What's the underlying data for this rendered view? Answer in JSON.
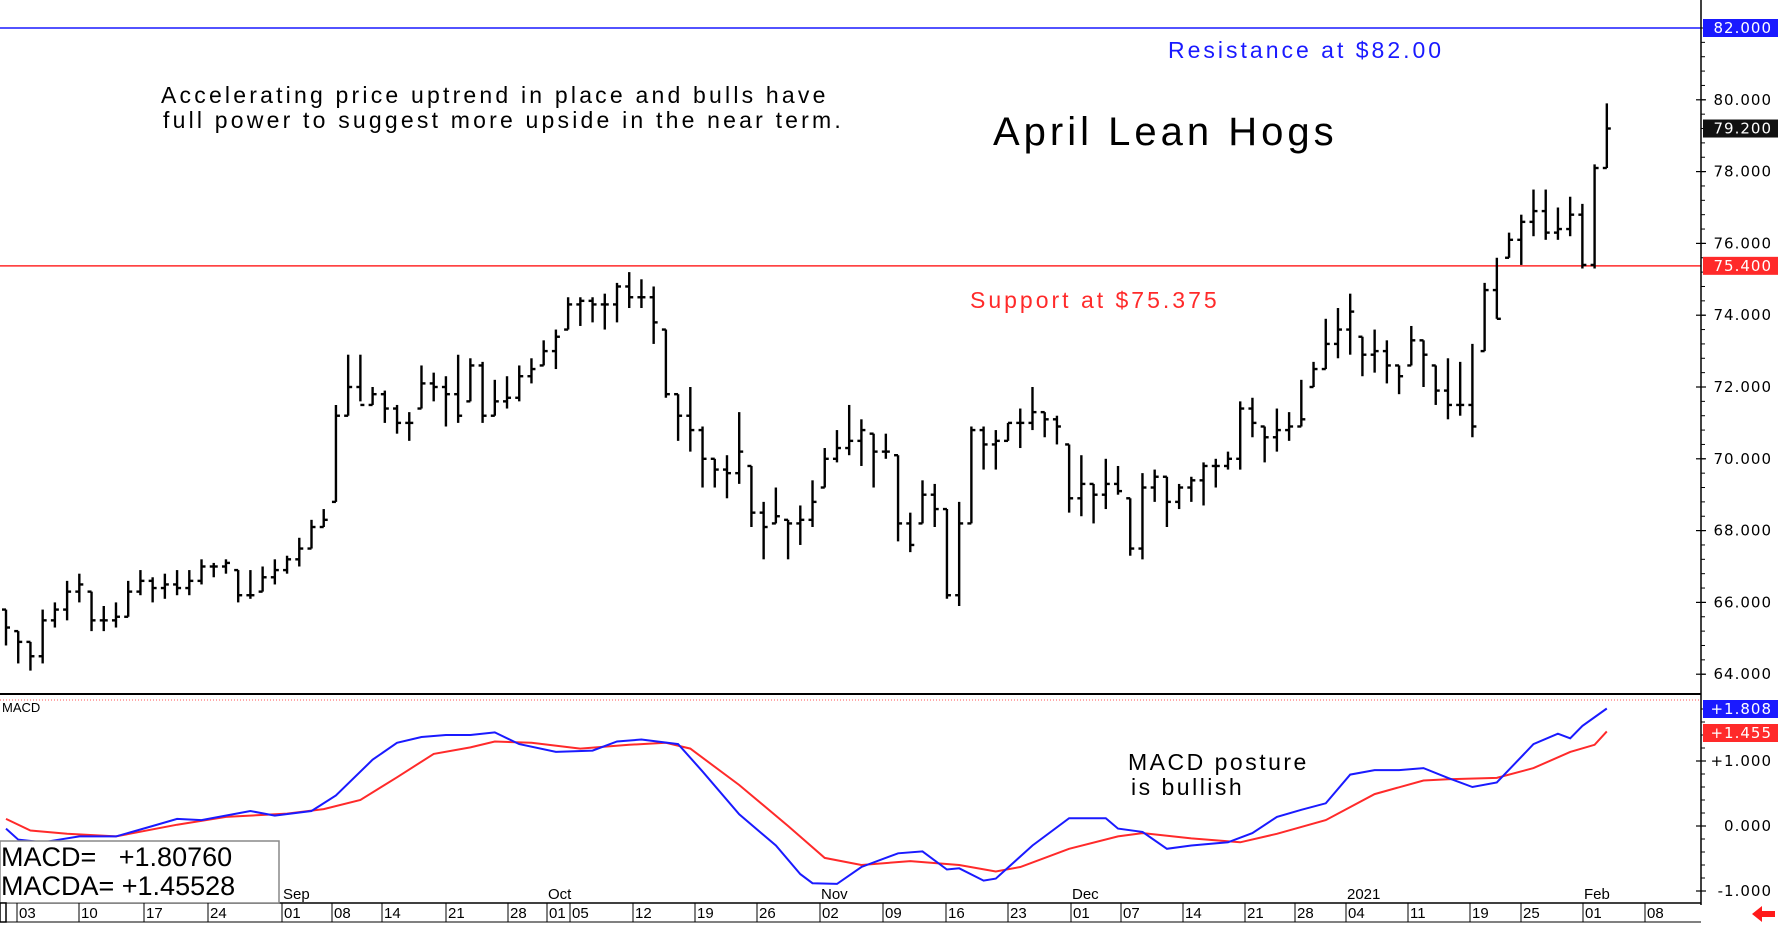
{
  "chart_data": [
    {
      "type": "ohlc-bar",
      "title": "April Lean Hogs",
      "annotations": {
        "commentary_line1": "Accelerating price uptrend in place and bulls have",
        "commentary_line2": "full power to suggest more upside in the near term.",
        "resistance": "Resistance at $82.00",
        "support": "Support at $75.375"
      },
      "ylim": [
        63.5,
        82.5
      ],
      "y_ticks": [
        "80.000",
        "78.000",
        "76.000",
        "74.000",
        "72.000",
        "70.000",
        "68.000",
        "66.000",
        "64.000"
      ],
      "y_tick_values": [
        80,
        78,
        76,
        74,
        72,
        70,
        68,
        66,
        64
      ],
      "levels": [
        {
          "label": "82.000",
          "value": 82.0,
          "color": "#1a1aff"
        },
        {
          "label": "75.400",
          "value": 75.375,
          "color": "#ff2a2a"
        }
      ],
      "last_price": {
        "label": "79.200",
        "value": 79.2,
        "color": "#111111"
      },
      "bars_hlc": [
        [
          65.8,
          64.8,
          65.3
        ],
        [
          65.2,
          64.3,
          64.9
        ],
        [
          64.9,
          64.1,
          64.5
        ],
        [
          65.8,
          64.3,
          65.5
        ],
        [
          66.0,
          65.3,
          65.8
        ],
        [
          66.6,
          65.5,
          66.3
        ],
        [
          66.8,
          66.0,
          66.5
        ],
        [
          66.3,
          65.2,
          65.5
        ],
        [
          65.9,
          65.2,
          65.5
        ],
        [
          66.0,
          65.3,
          65.6
        ],
        [
          66.6,
          65.6,
          66.3
        ],
        [
          66.9,
          66.2,
          66.6
        ],
        [
          66.7,
          66.0,
          66.4
        ],
        [
          66.8,
          66.1,
          66.5
        ],
        [
          66.9,
          66.2,
          66.4
        ],
        [
          66.9,
          66.2,
          66.6
        ],
        [
          67.2,
          66.5,
          67.0
        ],
        [
          67.1,
          66.7,
          67.0
        ],
        [
          67.2,
          66.8,
          67.1
        ],
        [
          66.9,
          66.0,
          66.2
        ],
        [
          66.9,
          66.1,
          66.2
        ],
        [
          67.0,
          66.3,
          66.7
        ],
        [
          67.2,
          66.5,
          66.9
        ],
        [
          67.3,
          66.8,
          67.2
        ],
        [
          67.8,
          67.0,
          67.5
        ],
        [
          68.3,
          67.5,
          68.1
        ],
        [
          68.6,
          68.1,
          68.3
        ],
        [
          71.5,
          68.8,
          71.2
        ],
        [
          72.9,
          71.2,
          72.0
        ],
        [
          72.9,
          71.6,
          71.5
        ],
        [
          72.0,
          71.5,
          71.8
        ],
        [
          71.9,
          71.0,
          71.4
        ],
        [
          71.5,
          70.7,
          71.0
        ],
        [
          71.3,
          70.5,
          71.0
        ],
        [
          72.6,
          71.4,
          72.1
        ],
        [
          72.4,
          71.6,
          72.0
        ],
        [
          72.3,
          70.9,
          71.8
        ],
        [
          72.9,
          71.0,
          71.2
        ],
        [
          72.8,
          71.6,
          72.6
        ],
        [
          72.7,
          71.0,
          71.2
        ],
        [
          72.2,
          71.2,
          71.6
        ],
        [
          72.3,
          71.4,
          71.7
        ],
        [
          72.6,
          71.6,
          72.3
        ],
        [
          72.8,
          72.1,
          72.5
        ],
        [
          73.3,
          72.6,
          73.0
        ],
        [
          73.6,
          72.5,
          73.4
        ],
        [
          74.5,
          73.6,
          74.3
        ],
        [
          74.5,
          73.7,
          74.4
        ],
        [
          74.5,
          73.8,
          74.3
        ],
        [
          74.6,
          73.6,
          74.3
        ],
        [
          74.9,
          73.8,
          74.8
        ],
        [
          75.2,
          74.2,
          74.5
        ],
        [
          75.0,
          74.2,
          74.5
        ],
        [
          74.8,
          73.2,
          73.8
        ],
        [
          73.6,
          71.7,
          71.8
        ],
        [
          71.8,
          70.5,
          71.2
        ],
        [
          72.0,
          70.2,
          70.8
        ],
        [
          70.9,
          69.2,
          70.0
        ],
        [
          70.0,
          69.2,
          69.7
        ],
        [
          70.1,
          68.9,
          69.6
        ],
        [
          71.3,
          69.3,
          70.2
        ],
        [
          69.8,
          68.1,
          68.5
        ],
        [
          68.8,
          67.2,
          68.1
        ],
        [
          69.2,
          68.2,
          68.4
        ],
        [
          68.3,
          67.2,
          68.2
        ],
        [
          68.7,
          67.6,
          68.3
        ],
        [
          69.4,
          68.1,
          68.8
        ],
        [
          70.3,
          69.2,
          70.0
        ],
        [
          70.8,
          69.9,
          70.3
        ],
        [
          71.5,
          70.1,
          70.5
        ],
        [
          71.1,
          69.8,
          70.8
        ],
        [
          70.7,
          69.2,
          70.2
        ],
        [
          70.7,
          70.0,
          70.2
        ],
        [
          70.1,
          67.7,
          68.2
        ],
        [
          68.5,
          67.4,
          67.6
        ],
        [
          69.4,
          68.2,
          69.0
        ],
        [
          69.3,
          68.1,
          68.6
        ],
        [
          68.6,
          66.1,
          66.2
        ],
        [
          68.8,
          65.9,
          68.2
        ],
        [
          70.9,
          68.2,
          70.8
        ],
        [
          70.9,
          69.7,
          70.4
        ],
        [
          70.8,
          69.7,
          70.5
        ],
        [
          71.0,
          70.5,
          71.0
        ],
        [
          71.4,
          70.3,
          71.0
        ],
        [
          72.0,
          70.8,
          71.3
        ],
        [
          71.3,
          70.6,
          71.1
        ],
        [
          71.2,
          70.4,
          70.9
        ],
        [
          70.4,
          68.5,
          68.9
        ],
        [
          70.1,
          68.4,
          69.3
        ],
        [
          69.3,
          68.2,
          69.0
        ],
        [
          70.0,
          68.6,
          69.3
        ],
        [
          69.8,
          69.0,
          69.1
        ],
        [
          68.9,
          67.3,
          67.5
        ],
        [
          69.6,
          67.2,
          69.2
        ],
        [
          69.7,
          68.8,
          69.5
        ],
        [
          69.5,
          68.1,
          68.8
        ],
        [
          69.3,
          68.6,
          69.2
        ],
        [
          69.5,
          68.8,
          69.4
        ],
        [
          69.9,
          68.7,
          69.8
        ],
        [
          70.0,
          69.2,
          69.8
        ],
        [
          70.2,
          69.7,
          70.0
        ],
        [
          71.6,
          69.7,
          71.4
        ],
        [
          71.7,
          70.6,
          71.0
        ],
        [
          70.9,
          69.9,
          70.6
        ],
        [
          71.4,
          70.2,
          70.8
        ],
        [
          71.3,
          70.5,
          70.9
        ],
        [
          72.2,
          70.9,
          71.1
        ],
        [
          72.7,
          72.0,
          72.5
        ],
        [
          73.9,
          72.5,
          73.2
        ],
        [
          74.2,
          72.8,
          73.6
        ],
        [
          74.6,
          72.9,
          74.1
        ],
        [
          73.4,
          72.3,
          72.9
        ],
        [
          73.6,
          72.4,
          73.0
        ],
        [
          73.3,
          72.1,
          72.6
        ],
        [
          72.6,
          71.8,
          72.3
        ],
        [
          73.7,
          72.6,
          73.3
        ],
        [
          73.3,
          72.0,
          72.9
        ],
        [
          72.6,
          71.5,
          71.9
        ],
        [
          72.8,
          71.1,
          71.5
        ],
        [
          72.7,
          71.2,
          71.5
        ],
        [
          73.2,
          70.6,
          70.9
        ],
        [
          74.9,
          73.0,
          74.7
        ],
        [
          75.6,
          73.9,
          73.9
        ],
        [
          76.3,
          75.6,
          76.1
        ],
        [
          76.8,
          75.4,
          76.6
        ],
        [
          77.5,
          76.2,
          76.9
        ],
        [
          77.5,
          76.1,
          76.3
        ],
        [
          77.0,
          76.1,
          76.4
        ],
        [
          77.3,
          76.2,
          76.8
        ],
        [
          77.1,
          75.3,
          75.4
        ],
        [
          78.2,
          75.3,
          78.1
        ],
        [
          79.9,
          78.1,
          79.2
        ]
      ]
    },
    {
      "type": "line",
      "title": "MACD",
      "ylim": [
        -1.1,
        2.0
      ],
      "y_ticks": [
        "+1.000",
        "0.000",
        "-1.000"
      ],
      "y_tick_values": [
        1,
        0,
        -1
      ],
      "annotation_line1": "MACD posture",
      "annotation_line2": "is bullish",
      "readout": {
        "macd": "MACD=   +1.80760",
        "macda": "MACDA= +1.45528"
      },
      "last_values": [
        {
          "label": "+1.808",
          "value": 1.8076,
          "color": "#1a1aff"
        },
        {
          "label": "+1.455",
          "value": 1.45528,
          "color": "#ff2a2a"
        }
      ],
      "series": [
        {
          "name": "MACD",
          "color": "#1a1aff",
          "points": [
            [
              0,
              -0.04
            ],
            [
              1,
              -0.21
            ],
            [
              3,
              -0.25
            ],
            [
              6,
              -0.16
            ],
            [
              9,
              -0.16
            ],
            [
              12,
              0
            ],
            [
              14,
              0.11
            ],
            [
              16,
              0.09
            ],
            [
              20,
              0.23
            ],
            [
              22,
              0.16
            ],
            [
              25,
              0.23
            ],
            [
              27,
              0.47
            ],
            [
              30,
              1.02
            ],
            [
              32,
              1.28
            ],
            [
              34,
              1.37
            ],
            [
              36,
              1.4
            ],
            [
              38,
              1.4
            ],
            [
              40,
              1.44
            ],
            [
              42,
              1.26
            ],
            [
              45,
              1.14
            ],
            [
              48,
              1.16
            ],
            [
              50,
              1.3
            ],
            [
              52,
              1.33
            ],
            [
              55,
              1.26
            ],
            [
              57,
              0.84
            ],
            [
              60,
              0.18
            ],
            [
              63,
              -0.3
            ],
            [
              65,
              -0.74
            ],
            [
              66,
              -0.88
            ],
            [
              68,
              -0.89
            ],
            [
              70,
              -0.63
            ],
            [
              73,
              -0.42
            ],
            [
              75,
              -0.39
            ],
            [
              77,
              -0.67
            ],
            [
              78,
              -0.65
            ],
            [
              80,
              -0.84
            ],
            [
              81,
              -0.81
            ],
            [
              84,
              -0.3
            ],
            [
              87,
              0.12
            ],
            [
              90,
              0.12
            ],
            [
              91,
              -0.04
            ],
            [
              93,
              -0.09
            ],
            [
              95,
              -0.35
            ],
            [
              97,
              -0.3
            ],
            [
              100,
              -0.25
            ],
            [
              102,
              -0.11
            ],
            [
              104,
              0.14
            ],
            [
              106,
              0.25
            ],
            [
              108,
              0.35
            ],
            [
              110,
              0.79
            ],
            [
              112,
              0.86
            ],
            [
              114,
              0.86
            ],
            [
              116,
              0.89
            ],
            [
              118,
              0.74
            ],
            [
              120,
              0.6
            ],
            [
              122,
              0.67
            ],
            [
              125,
              1.26
            ],
            [
              127,
              1.42
            ],
            [
              128,
              1.35
            ],
            [
              129,
              1.54
            ],
            [
              131,
              1.808
            ]
          ]
        },
        {
          "name": "MACDA",
          "color": "#ff2a2a",
          "points": [
            [
              0,
              0.11
            ],
            [
              2,
              -0.07
            ],
            [
              5,
              -0.12
            ],
            [
              9,
              -0.16
            ],
            [
              14,
              0.02
            ],
            [
              18,
              0.14
            ],
            [
              23,
              0.19
            ],
            [
              26,
              0.26
            ],
            [
              29,
              0.4
            ],
            [
              32,
              0.75
            ],
            [
              35,
              1.11
            ],
            [
              38,
              1.21
            ],
            [
              40,
              1.3
            ],
            [
              43,
              1.28
            ],
            [
              47,
              1.19
            ],
            [
              51,
              1.25
            ],
            [
              54,
              1.28
            ],
            [
              56,
              1.19
            ],
            [
              60,
              0.63
            ],
            [
              64,
              0
            ],
            [
              67,
              -0.49
            ],
            [
              70,
              -0.6
            ],
            [
              74,
              -0.54
            ],
            [
              78,
              -0.6
            ],
            [
              81,
              -0.7
            ],
            [
              83,
              -0.63
            ],
            [
              87,
              -0.35
            ],
            [
              91,
              -0.16
            ],
            [
              93,
              -0.11
            ],
            [
              97,
              -0.19
            ],
            [
              101,
              -0.25
            ],
            [
              104,
              -0.12
            ],
            [
              108,
              0.09
            ],
            [
              112,
              0.49
            ],
            [
              116,
              0.7
            ],
            [
              118,
              0.72
            ],
            [
              122,
              0.74
            ],
            [
              125,
              0.89
            ],
            [
              128,
              1.14
            ],
            [
              130,
              1.25
            ],
            [
              131,
              1.455
            ]
          ]
        }
      ]
    }
  ],
  "x_axis": {
    "day_ticks": [
      "03",
      "10",
      "17",
      "24",
      "01",
      "08",
      "14",
      "21",
      "28",
      "01",
      "05",
      "12",
      "19",
      "26",
      "02",
      "09",
      "16",
      "23",
      "01",
      "07",
      "14",
      "21",
      "28",
      "04",
      "11",
      "19",
      "25",
      "01",
      "08"
    ],
    "month_labels": [
      "Sep",
      "Oct",
      "Nov",
      "Dec",
      "2021",
      "Feb"
    ]
  },
  "scroll_arrow_icon": "left-arrow-icon"
}
